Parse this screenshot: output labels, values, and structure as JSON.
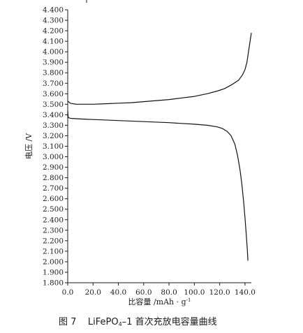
{
  "chart_data": {
    "type": "line",
    "xlabel": "比容量 /mAh · g",
    "xlabel_sup": "-1",
    "ylabel": "电压 /V",
    "xlim": [
      0,
      145
    ],
    "ylim": [
      1.8,
      4.4
    ],
    "x_ticks": [
      "0.0",
      "20.0",
      "40.0",
      "60.0",
      "80.0",
      "100.0",
      "120.0",
      "140.0"
    ],
    "x_tick_values": [
      0,
      20,
      40,
      60,
      80,
      100,
      120,
      140
    ],
    "y_ticks": [
      "1.800",
      "1.900",
      "2.000",
      "2.100",
      "2.200",
      "2.300",
      "2.400",
      "2.500",
      "2.600",
      "2.700",
      "2.800",
      "2.900",
      "3.000",
      "3.100",
      "3.200",
      "3.300",
      "3.400",
      "3.500",
      "3.600",
      "3.700",
      "3.800",
      "3.900",
      "4.000",
      "4.100",
      "4.200",
      "4.300",
      "4.400"
    ],
    "y_tick_values": [
      1.8,
      1.9,
      2.0,
      2.1,
      2.2,
      2.3,
      2.4,
      2.5,
      2.6,
      2.7,
      2.8,
      2.9,
      3.0,
      3.1,
      3.2,
      3.3,
      3.4,
      3.5,
      3.6,
      3.7,
      3.8,
      3.9,
      4.0,
      4.1,
      4.2,
      4.3,
      4.4
    ],
    "grid": false,
    "series": [
      {
        "x": [
          0,
          1,
          2,
          4,
          7,
          10,
          15,
          20,
          30,
          40,
          50,
          60,
          70,
          80,
          90,
          100,
          110,
          118,
          124,
          130,
          135,
          138,
          140,
          141.5,
          142.5,
          143.5,
          144.5,
          145
        ],
        "y": [
          3.53,
          3.52,
          3.51,
          3.505,
          3.5,
          3.5,
          3.5,
          3.5,
          3.505,
          3.51,
          3.515,
          3.525,
          3.535,
          3.545,
          3.56,
          3.575,
          3.6,
          3.625,
          3.65,
          3.69,
          3.73,
          3.78,
          3.83,
          3.9,
          3.98,
          4.06,
          4.14,
          4.18
        ]
      },
      {
        "x": [
          0,
          0.2,
          0.4,
          0.7,
          1,
          1.5,
          3,
          10,
          20,
          40,
          60,
          80,
          100,
          110,
          118,
          122,
          126,
          129,
          132,
          134,
          136,
          137.5,
          139,
          140,
          141,
          141.8,
          142.3
        ],
        "y": [
          3.44,
          3.4,
          3.38,
          3.372,
          3.37,
          3.368,
          3.365,
          3.36,
          3.355,
          3.345,
          3.335,
          3.325,
          3.31,
          3.3,
          3.285,
          3.27,
          3.24,
          3.2,
          3.12,
          3.02,
          2.88,
          2.74,
          2.56,
          2.42,
          2.26,
          2.12,
          2.01
        ]
      }
    ]
  },
  "caption": {
    "prefix": "图 7    LiFePO",
    "sub": "4",
    "suffix": "–1 首次充放电容量曲线"
  }
}
